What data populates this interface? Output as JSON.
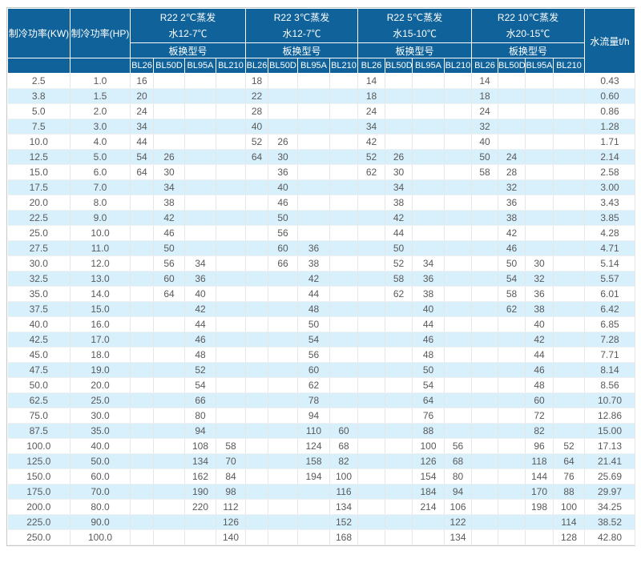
{
  "table": {
    "col_kw_header": "制冷功率(KW)",
    "col_hp_header": "制冷功率(HP)",
    "flow_header": "水流量t/h",
    "model_row_label": "板换型号",
    "groups": [
      {
        "line1": "R22 2℃蒸发",
        "line2": "水12-7℃",
        "models": [
          "BL26",
          "BL50D",
          "BL95A",
          "BL210"
        ]
      },
      {
        "line1": "R22 3℃蒸发",
        "line2": "水12-7℃",
        "models": [
          "BL26",
          "BL50D",
          "BL95A",
          "BL210"
        ]
      },
      {
        "line1": "R22 5℃蒸发",
        "line2": "水15-10℃",
        "models": [
          "BL26",
          "BL50D",
          "BL95A",
          "BL210"
        ]
      },
      {
        "line1": "R22 10℃蒸发",
        "line2": "水20-15℃",
        "models": [
          "BL26",
          "BL50D",
          "BL95A",
          "BL210"
        ]
      }
    ],
    "rows": [
      {
        "kw": "2.5",
        "hp": "1.0",
        "cells": [
          "16",
          "",
          "",
          "",
          "18",
          "",
          "",
          "",
          "14",
          "",
          "",
          "",
          "14",
          "",
          "",
          ""
        ],
        "flow": "0.43"
      },
      {
        "kw": "3.8",
        "hp": "1.5",
        "cells": [
          "20",
          "",
          "",
          "",
          "22",
          "",
          "",
          "",
          "18",
          "",
          "",
          "",
          "18",
          "",
          "",
          ""
        ],
        "flow": "0.60"
      },
      {
        "kw": "5.0",
        "hp": "2.0",
        "cells": [
          "24",
          "",
          "",
          "",
          "28",
          "",
          "",
          "",
          "24",
          "",
          "",
          "",
          "24",
          "",
          "",
          ""
        ],
        "flow": "0.86"
      },
      {
        "kw": "7.5",
        "hp": "3.0",
        "cells": [
          "34",
          "",
          "",
          "",
          "40",
          "",
          "",
          "",
          "34",
          "",
          "",
          "",
          "32",
          "",
          "",
          ""
        ],
        "flow": "1.28"
      },
      {
        "kw": "10.0",
        "hp": "4.0",
        "cells": [
          "44",
          "",
          "",
          "",
          "52",
          "26",
          "",
          "",
          "42",
          "",
          "",
          "",
          "40",
          "",
          "",
          ""
        ],
        "flow": "1.71"
      },
      {
        "kw": "12.5",
        "hp": "5.0",
        "cells": [
          "54",
          "26",
          "",
          "",
          "64",
          "30",
          "",
          "",
          "52",
          "26",
          "",
          "",
          "50",
          "24",
          "",
          ""
        ],
        "flow": "2.14"
      },
      {
        "kw": "15.0",
        "hp": "6.0",
        "cells": [
          "64",
          "30",
          "",
          "",
          "",
          "36",
          "",
          "",
          "62",
          "30",
          "",
          "",
          "58",
          "28",
          "",
          ""
        ],
        "flow": "2.58"
      },
      {
        "kw": "17.5",
        "hp": "7.0",
        "cells": [
          "",
          "34",
          "",
          "",
          "",
          "40",
          "",
          "",
          "",
          "34",
          "",
          "",
          "",
          "32",
          "",
          ""
        ],
        "flow": "3.00"
      },
      {
        "kw": "20.0",
        "hp": "8.0",
        "cells": [
          "",
          "38",
          "",
          "",
          "",
          "46",
          "",
          "",
          "",
          "38",
          "",
          "",
          "",
          "36",
          "",
          ""
        ],
        "flow": "3.43"
      },
      {
        "kw": "22.5",
        "hp": "9.0",
        "cells": [
          "",
          "42",
          "",
          "",
          "",
          "50",
          "",
          "",
          "",
          "42",
          "",
          "",
          "",
          "38",
          "",
          ""
        ],
        "flow": "3.85"
      },
      {
        "kw": "25.0",
        "hp": "10.0",
        "cells": [
          "",
          "46",
          "",
          "",
          "",
          "56",
          "",
          "",
          "",
          "44",
          "",
          "",
          "",
          "42",
          "",
          ""
        ],
        "flow": "4.28"
      },
      {
        "kw": "27.5",
        "hp": "11.0",
        "cells": [
          "",
          "50",
          "",
          "",
          "",
          "60",
          "36",
          "",
          "",
          "50",
          "",
          "",
          "",
          "46",
          "",
          ""
        ],
        "flow": "4.71"
      },
      {
        "kw": "30.0",
        "hp": "12.0",
        "cells": [
          "",
          "56",
          "34",
          "",
          "",
          "66",
          "38",
          "",
          "",
          "52",
          "34",
          "",
          "",
          "50",
          "30",
          ""
        ],
        "flow": "5.14"
      },
      {
        "kw": "32.5",
        "hp": "13.0",
        "cells": [
          "",
          "60",
          "36",
          "",
          "",
          "",
          "42",
          "",
          "",
          "58",
          "36",
          "",
          "",
          "54",
          "32",
          ""
        ],
        "flow": "5.57"
      },
      {
        "kw": "35.0",
        "hp": "14.0",
        "cells": [
          "",
          "64",
          "40",
          "",
          "",
          "",
          "44",
          "",
          "",
          "62",
          "38",
          "",
          "",
          "58",
          "36",
          ""
        ],
        "flow": "6.01"
      },
      {
        "kw": "37.5",
        "hp": "15.0",
        "cells": [
          "",
          "",
          "42",
          "",
          "",
          "",
          "48",
          "",
          "",
          "",
          "40",
          "",
          "",
          "62",
          "38",
          ""
        ],
        "flow": "6.42"
      },
      {
        "kw": "40.0",
        "hp": "16.0",
        "cells": [
          "",
          "",
          "44",
          "",
          "",
          "",
          "50",
          "",
          "",
          "",
          "44",
          "",
          "",
          "",
          "40",
          ""
        ],
        "flow": "6.85"
      },
      {
        "kw": "42.5",
        "hp": "17.0",
        "cells": [
          "",
          "",
          "46",
          "",
          "",
          "",
          "54",
          "",
          "",
          "",
          "46",
          "",
          "",
          "",
          "42",
          ""
        ],
        "flow": "7.28"
      },
      {
        "kw": "45.0",
        "hp": "18.0",
        "cells": [
          "",
          "",
          "48",
          "",
          "",
          "",
          "56",
          "",
          "",
          "",
          "48",
          "",
          "",
          "",
          "44",
          ""
        ],
        "flow": "7.71"
      },
      {
        "kw": "47.5",
        "hp": "19.0",
        "cells": [
          "",
          "",
          "52",
          "",
          "",
          "",
          "60",
          "",
          "",
          "",
          "50",
          "",
          "",
          "",
          "46",
          ""
        ],
        "flow": "8.14"
      },
      {
        "kw": "50.0",
        "hp": "20.0",
        "cells": [
          "",
          "",
          "54",
          "",
          "",
          "",
          "62",
          "",
          "",
          "",
          "54",
          "",
          "",
          "",
          "48",
          ""
        ],
        "flow": "8.56"
      },
      {
        "kw": "62.5",
        "hp": "25.0",
        "cells": [
          "",
          "",
          "66",
          "",
          "",
          "",
          "78",
          "",
          "",
          "",
          "64",
          "",
          "",
          "",
          "60",
          ""
        ],
        "flow": "10.70"
      },
      {
        "kw": "75.0",
        "hp": "30.0",
        "cells": [
          "",
          "",
          "80",
          "",
          "",
          "",
          "94",
          "",
          "",
          "",
          "76",
          "",
          "",
          "",
          "72",
          ""
        ],
        "flow": "12.86"
      },
      {
        "kw": "87.5",
        "hp": "35.0",
        "cells": [
          "",
          "",
          "94",
          "",
          "",
          "",
          "110",
          "60",
          "",
          "",
          "88",
          "",
          "",
          "",
          "82",
          ""
        ],
        "flow": "15.00"
      },
      {
        "kw": "100.0",
        "hp": "40.0",
        "cells": [
          "",
          "",
          "108",
          "58",
          "",
          "",
          "124",
          "68",
          "",
          "",
          "100",
          "56",
          "",
          "",
          "96",
          "52"
        ],
        "flow": "17.13"
      },
      {
        "kw": "125.0",
        "hp": "50.0",
        "cells": [
          "",
          "",
          "134",
          "70",
          "",
          "",
          "158",
          "82",
          "",
          "",
          "126",
          "68",
          "",
          "",
          "118",
          "64"
        ],
        "flow": "21.41"
      },
      {
        "kw": "150.0",
        "hp": "60.0",
        "cells": [
          "",
          "",
          "162",
          "84",
          "",
          "",
          "194",
          "100",
          "",
          "",
          "154",
          "80",
          "",
          "",
          "144",
          "76"
        ],
        "flow": "25.69"
      },
      {
        "kw": "175.0",
        "hp": "70.0",
        "cells": [
          "",
          "",
          "190",
          "98",
          "",
          "",
          "",
          "116",
          "",
          "",
          "184",
          "94",
          "",
          "",
          "170",
          "88"
        ],
        "flow": "29.97"
      },
      {
        "kw": "200.0",
        "hp": "80.0",
        "cells": [
          "",
          "",
          "220",
          "112",
          "",
          "",
          "",
          "134",
          "",
          "",
          "214",
          "106",
          "",
          "",
          "198",
          "100"
        ],
        "flow": "34.25"
      },
      {
        "kw": "225.0",
        "hp": "90.0",
        "cells": [
          "",
          "",
          "",
          "126",
          "",
          "",
          "",
          "152",
          "",
          "",
          "",
          "122",
          "",
          "",
          "",
          "114"
        ],
        "flow": "38.52"
      },
      {
        "kw": "250.0",
        "hp": "100.0",
        "cells": [
          "",
          "",
          "",
          "140",
          "",
          "",
          "",
          "168",
          "",
          "",
          "",
          "134",
          "",
          "",
          "",
          "128"
        ],
        "flow": "42.80"
      }
    ]
  },
  "colors": {
    "header_bg": "#10629a",
    "header_text": "#ffffff",
    "row_alt_bg": "#d7f0fb",
    "cell_text": "#58595b"
  }
}
